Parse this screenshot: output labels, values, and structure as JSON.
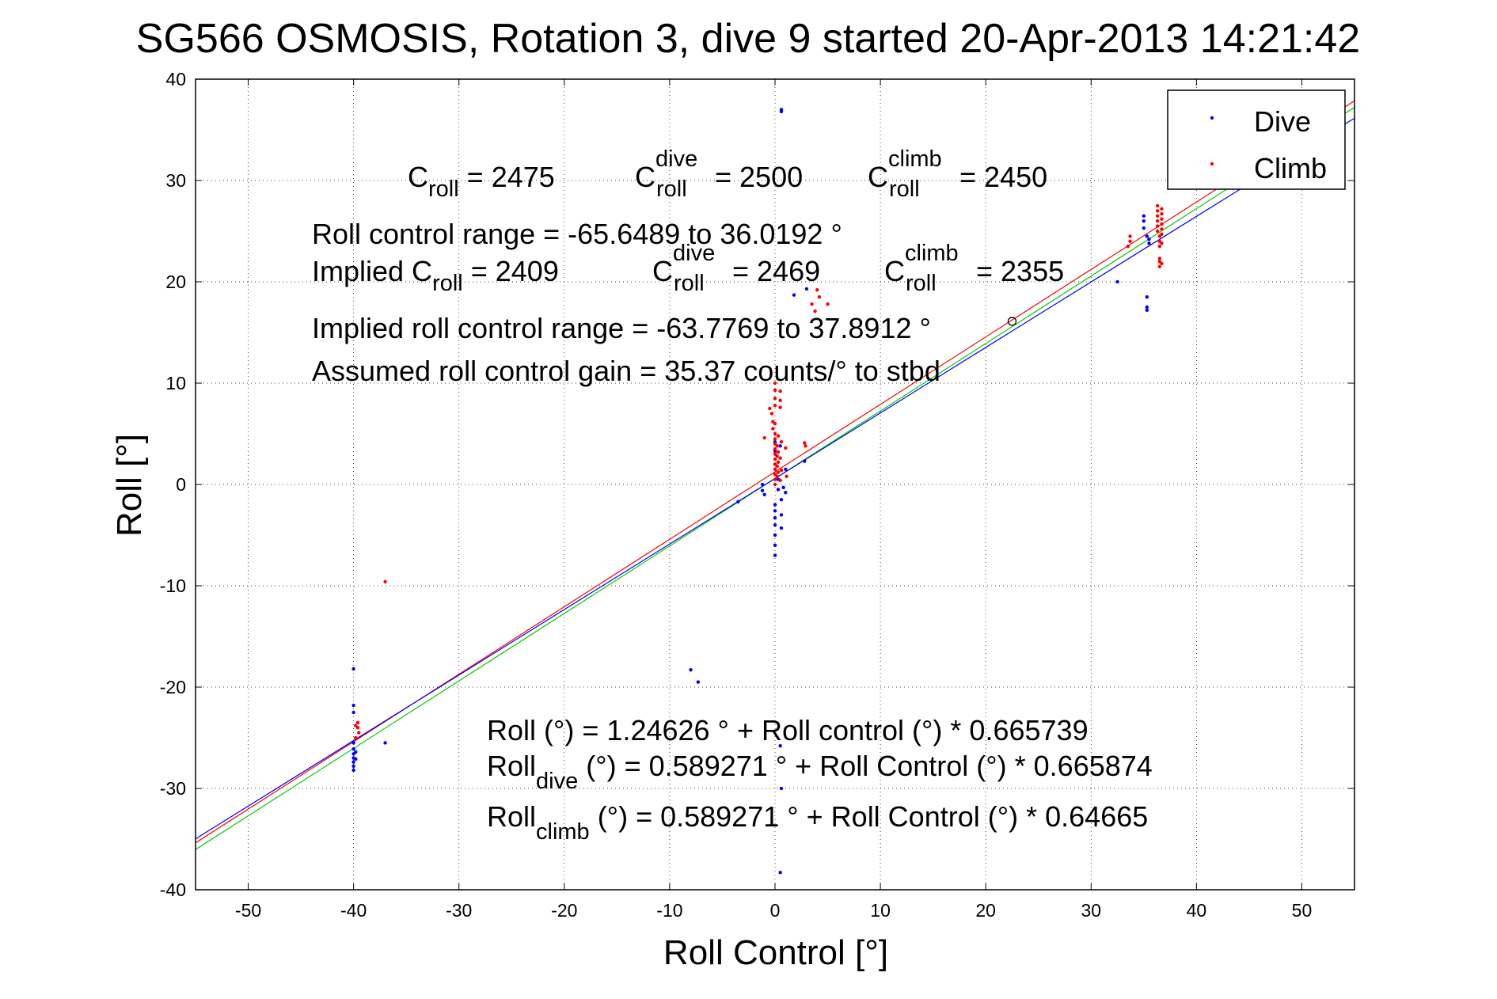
{
  "chart_data": {
    "type": "scatter",
    "title": "SG566 OSMOSIS, Rotation 3, dive 9 started 20-Apr-2013 14:21:42",
    "xlabel": "Roll Control [°]",
    "ylabel": "Roll [°]",
    "xlim": [
      -55,
      55
    ],
    "ylim": [
      -40,
      40
    ],
    "xticks": [
      -50,
      -40,
      -30,
      -20,
      -10,
      0,
      10,
      20,
      30,
      40,
      50
    ],
    "yticks": [
      -40,
      -30,
      -20,
      -10,
      0,
      10,
      20,
      30,
      40
    ],
    "grid": "dotted",
    "legend": {
      "position": "top-right",
      "entries": [
        {
          "label": "Dive",
          "color": "#0000ff"
        },
        {
          "label": "Climb",
          "color": "#ff0000"
        }
      ]
    },
    "series": [
      {
        "name": "Dive",
        "color": "#0000ff",
        "points": [
          [
            0.6,
            37
          ],
          [
            0.6,
            36.8
          ],
          [
            1.8,
            18.7
          ],
          [
            3,
            19.3
          ],
          [
            -40,
            -18.2
          ],
          [
            -40,
            -21.8
          ],
          [
            -40,
            -22.5
          ],
          [
            -40,
            -25.5
          ],
          [
            -40,
            -26.1
          ],
          [
            -40,
            -26.6
          ],
          [
            -40,
            -27
          ],
          [
            -40,
            -27.4
          ],
          [
            -40,
            -27.8
          ],
          [
            -40,
            -28.2
          ],
          [
            -39.8,
            -26.4
          ],
          [
            -39.8,
            -27.1
          ],
          [
            -37,
            -25.5
          ],
          [
            -8,
            -18.3
          ],
          [
            -7.3,
            -19.5
          ],
          [
            -3.5,
            -1.7
          ],
          [
            -1.2,
            0
          ],
          [
            -1.2,
            -0.6
          ],
          [
            -1,
            -1
          ],
          [
            0,
            -2
          ],
          [
            0,
            -2.6
          ],
          [
            0,
            -3.3
          ],
          [
            0,
            -4
          ],
          [
            0,
            -5
          ],
          [
            0,
            -6
          ],
          [
            0,
            -7
          ],
          [
            0,
            1
          ],
          [
            0,
            2
          ],
          [
            0,
            3.3
          ],
          [
            0,
            4.2
          ],
          [
            0.3,
            0.5
          ],
          [
            0.3,
            -0.5
          ],
          [
            0.5,
            3.8
          ],
          [
            0.6,
            -1.5
          ],
          [
            0.6,
            -3
          ],
          [
            0.6,
            -4.3
          ],
          [
            0.8,
            -0.3
          ],
          [
            1,
            -0.8
          ],
          [
            1,
            1.5
          ],
          [
            2.8,
            2.3
          ],
          [
            0.5,
            -25.8
          ],
          [
            0.6,
            -30
          ],
          [
            0.5,
            -38.3
          ],
          [
            32.5,
            20
          ],
          [
            35,
            26.5
          ],
          [
            35,
            26
          ],
          [
            35,
            25.3
          ],
          [
            35.3,
            24.5
          ],
          [
            35.5,
            23.8
          ],
          [
            35.5,
            24.2
          ],
          [
            35.3,
            18.5
          ],
          [
            35.3,
            17.5
          ],
          [
            35.3,
            17.2
          ]
        ]
      },
      {
        "name": "Climb",
        "color": "#ff0000",
        "points": [
          [
            -37,
            -9.6
          ],
          [
            -39.6,
            -23.5
          ],
          [
            -39.6,
            -24
          ],
          [
            -39.5,
            -24.5
          ],
          [
            -39.8,
            -23.8
          ],
          [
            -39.8,
            -25
          ],
          [
            -1,
            4.6
          ],
          [
            -0.5,
            7.5
          ],
          [
            -0.3,
            7
          ],
          [
            -0.2,
            6.2
          ],
          [
            -0.2,
            5.5
          ],
          [
            0,
            10
          ],
          [
            0,
            9.3
          ],
          [
            0,
            8.5
          ],
          [
            0,
            7.8
          ],
          [
            0,
            6
          ],
          [
            0,
            5
          ],
          [
            0,
            4.5
          ],
          [
            0,
            4
          ],
          [
            0,
            3.5
          ],
          [
            0,
            3
          ],
          [
            0,
            2.5
          ],
          [
            0,
            2
          ],
          [
            0,
            1.5
          ],
          [
            0,
            1
          ],
          [
            0,
            0.5
          ],
          [
            0,
            0
          ],
          [
            0.2,
            3.8
          ],
          [
            0.2,
            2.8
          ],
          [
            0.2,
            1.8
          ],
          [
            0.2,
            0.8
          ],
          [
            0.3,
            4.8
          ],
          [
            0.3,
            3.2
          ],
          [
            0.3,
            2.2
          ],
          [
            0.3,
            1.2
          ],
          [
            0.5,
            7.6
          ],
          [
            0.5,
            9.2
          ],
          [
            0.5,
            8.3
          ],
          [
            0.5,
            2.6
          ],
          [
            0.5,
            0.4
          ],
          [
            0.6,
            4.2
          ],
          [
            0.6,
            1.4
          ],
          [
            1.1,
            0.8
          ],
          [
            1,
            3.6
          ],
          [
            2.8,
            4.1
          ],
          [
            2.9,
            3.8
          ],
          [
            4,
            19.2
          ],
          [
            3.5,
            17.8
          ],
          [
            4.2,
            18.5
          ],
          [
            3.8,
            17.1
          ],
          [
            5,
            17.8
          ],
          [
            33.7,
            24.5
          ],
          [
            33.7,
            24
          ],
          [
            33.5,
            23.5
          ],
          [
            36.3,
            27.5
          ],
          [
            36.3,
            27
          ],
          [
            36.3,
            26.5
          ],
          [
            36.3,
            26
          ],
          [
            36.3,
            25.5
          ],
          [
            36.3,
            25
          ],
          [
            36.5,
            24.5
          ],
          [
            36.5,
            24
          ],
          [
            36.5,
            23.5
          ],
          [
            36.5,
            22.3
          ],
          [
            36.5,
            22
          ],
          [
            36.5,
            21.5
          ],
          [
            36.7,
            27.2
          ],
          [
            36.7,
            26.7
          ],
          [
            36.7,
            26.2
          ],
          [
            36.7,
            25.7
          ],
          [
            36.7,
            25.2
          ],
          [
            36.7,
            24.7
          ],
          [
            36.7,
            23.8
          ],
          [
            36.7,
            21.8
          ]
        ]
      },
      {
        "name": "",
        "color": "#000000",
        "marker": "circle",
        "points": [
          [
            22.5,
            16.1
          ]
        ]
      }
    ],
    "fit_lines": [
      {
        "color": "#ff0000",
        "intercept": 1.24626,
        "slope": 0.665739
      },
      {
        "color": "#00cc00",
        "intercept": 0.589271,
        "slope": 0.665874
      },
      {
        "color": "#0000ff",
        "intercept": 0.589271,
        "slope": 0.64665
      }
    ],
    "annotations": {
      "c_roll": {
        "base": "C",
        "sub": "roll",
        "rest": " = 2475"
      },
      "c_dive": {
        "base": "C",
        "sup": "dive",
        "sub": "roll",
        "rest": " = 2500"
      },
      "c_climb": {
        "base": "C",
        "sup": "climb",
        "sub": "roll",
        "rest": " = 2450"
      },
      "range_line": "Roll control range = -65.6489 to 36.0192 °",
      "implied_prefix": "Implied C",
      "implied_sub": "roll",
      "implied_rest": " = 2409",
      "implied_dive": {
        "base": "C",
        "sup": "dive",
        "sub": "roll",
        "rest": " = 2469"
      },
      "implied_climb": {
        "base": "C",
        "sup": "climb",
        "sub": "roll",
        "rest": " = 2355"
      },
      "implied_range_line": "Implied roll control range = -63.7769 to 37.8912 °",
      "gain_line": "Assumed roll control gain = 35.37 counts/° to stbd",
      "fit_line_1": "Roll (°) = 1.24626 ° + Roll control (°) * 0.665739",
      "fit_line_2_base": "Roll",
      "fit_line_2_sub": "dive",
      "fit_line_2_rest": " (°) = 0.589271 ° + Roll Control (°) * 0.665874",
      "fit_line_3_base": "Roll",
      "fit_line_3_sub": "climb",
      "fit_line_3_rest": " (°) = 0.589271 ° + Roll Control (°) * 0.64665"
    }
  }
}
